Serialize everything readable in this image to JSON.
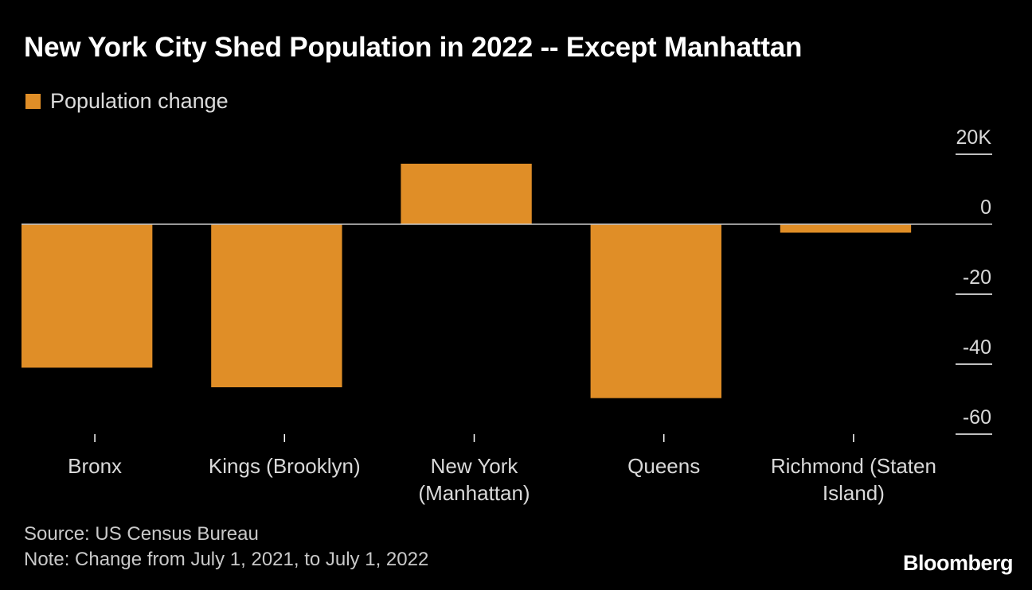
{
  "chart_data": {
    "type": "bar",
    "title": "New York City Shed Population in 2022 -- Except Manhattan",
    "legend": [
      "Population change"
    ],
    "categories": [
      [
        "Bronx"
      ],
      [
        "Kings (Brooklyn)"
      ],
      [
        "New York",
        "(Manhattan)"
      ],
      [
        "Queens"
      ],
      [
        "Richmond (Staten",
        "Island)"
      ]
    ],
    "series": [
      {
        "name": "Population change",
        "values": [
          -41,
          -46.6,
          17.3,
          -49.7,
          -2.4
        ]
      }
    ],
    "y_ticks": [
      {
        "value": 20,
        "label": "20K"
      },
      {
        "value": 0,
        "label": "0"
      },
      {
        "value": -20,
        "label": "-20"
      },
      {
        "value": -40,
        "label": "-40"
      },
      {
        "value": -60,
        "label": "-60"
      }
    ],
    "ylim": [
      -60,
      20
    ],
    "xlabel": "",
    "ylabel": "",
    "bar_color": "#e08e27"
  },
  "source": "Source: US Census Bureau",
  "note": "Note: Change from July 1, 2021, to July 1, 2022",
  "brand": "Bloomberg"
}
